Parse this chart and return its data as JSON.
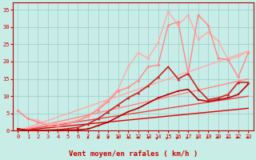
{
  "xlabel": "Vent moyen/en rafales ( km/h )",
  "x": [
    0,
    1,
    2,
    3,
    4,
    5,
    6,
    7,
    8,
    9,
    10,
    11,
    12,
    13,
    14,
    15,
    16,
    17,
    18,
    19,
    20,
    21,
    22,
    23
  ],
  "bg_color": "#c8ece6",
  "grid_color": "#99cccc",
  "trend_lines": [
    {
      "x0": 0,
      "x1": 23,
      "y0": 0,
      "y1": 6.5,
      "color": "#dd0000",
      "lw": 1.0
    },
    {
      "x0": 0,
      "x1": 23,
      "y0": 0,
      "y1": 10.0,
      "color": "#ee4444",
      "lw": 1.0
    },
    {
      "x0": 0,
      "x1": 23,
      "y0": 0,
      "y1": 15.0,
      "color": "#ff8888",
      "lw": 1.0
    },
    {
      "x0": 0,
      "x1": 23,
      "y0": 0,
      "y1": 23.0,
      "color": "#ffaaaa",
      "lw": 1.0
    }
  ],
  "series": [
    {
      "y": [
        0.6,
        0.1,
        0.1,
        0.1,
        0.2,
        0.2,
        0.3,
        0.5,
        1.5,
        2.5,
        4.0,
        5.5,
        6.5,
        8.0,
        9.5,
        10.5,
        11.5,
        12.0,
        9.0,
        8.5,
        9.0,
        9.5,
        10.5,
        13.5
      ],
      "color": "#bb0000",
      "lw": 1.2,
      "marker": "s",
      "ms": 2.0,
      "zorder": 6
    },
    {
      "y": [
        0.5,
        0.1,
        0.1,
        0.2,
        0.3,
        0.6,
        1.0,
        2.0,
        3.5,
        5.5,
        7.5,
        9.5,
        11.0,
        13.0,
        15.5,
        18.5,
        15.0,
        16.5,
        12.0,
        9.0,
        9.5,
        10.5,
        14.0,
        14.0
      ],
      "color": "#cc2222",
      "lw": 1.2,
      "marker": "^",
      "ms": 2.5,
      "zorder": 5
    },
    {
      "y": [
        5.8,
        3.5,
        2.5,
        1.5,
        1.2,
        2.0,
        2.8,
        4.5,
        6.0,
        8.5,
        11.5,
        12.5,
        14.5,
        18.5,
        19.0,
        30.5,
        31.5,
        16.5,
        33.5,
        30.5,
        21.0,
        20.5,
        15.5,
        22.5
      ],
      "color": "#ff8888",
      "lw": 1.0,
      "marker": "D",
      "ms": 2.0,
      "zorder": 4
    },
    {
      "y": [
        5.8,
        3.5,
        3.0,
        2.0,
        2.0,
        2.5,
        3.0,
        4.0,
        6.5,
        9.0,
        12.0,
        18.5,
        22.5,
        21.0,
        25.5,
        34.5,
        30.5,
        33.5,
        26.5,
        28.5,
        26.0,
        20.5,
        21.5,
        23.0
      ],
      "color": "#ffaaaa",
      "lw": 1.0,
      "marker": "D",
      "ms": 2.0,
      "zorder": 3
    }
  ],
  "ylim": [
    0,
    37
  ],
  "xlim": [
    -0.5,
    23.5
  ],
  "yticks": [
    0,
    5,
    10,
    15,
    20,
    25,
    30,
    35
  ],
  "xticks": [
    0,
    1,
    2,
    3,
    4,
    5,
    6,
    7,
    8,
    9,
    10,
    11,
    12,
    13,
    14,
    15,
    16,
    17,
    18,
    19,
    20,
    21,
    22,
    23
  ],
  "arrow_starts": [
    7,
    8,
    9,
    10,
    11,
    12,
    13,
    14,
    15,
    16,
    17,
    18,
    19,
    20,
    21,
    22,
    23
  ],
  "tick_fontsize": 5.0,
  "label_fontsize": 6.5
}
